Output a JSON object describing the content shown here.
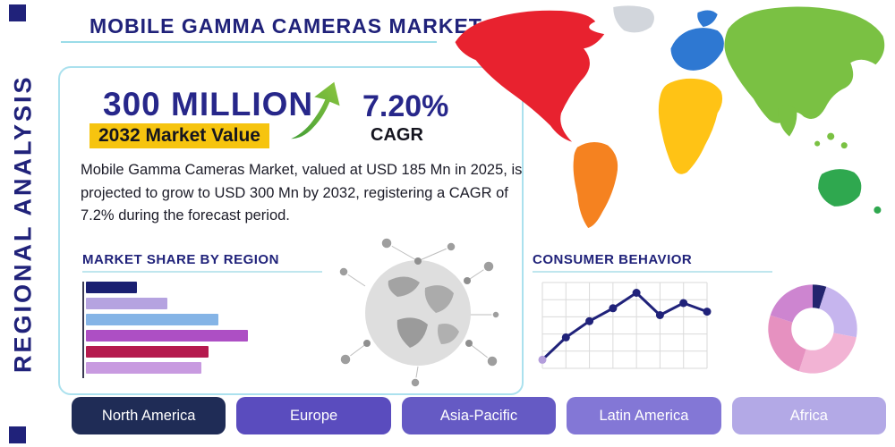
{
  "page": {
    "title": "MOBILE GAMMA CAMERAS MARKET",
    "side_label": "REGIONAL ANALYSIS"
  },
  "highlight": {
    "value": "300 MILLION",
    "value_caption": "2032 Market Value",
    "cagr_value": "7.20%",
    "cagr_label": "CAGR",
    "description": "Mobile Gamma Cameras Market, valued at USD 185 Mn in 2025, is projected to grow to USD 300 Mn by 2032, registering a CAGR of 7.2% during the forecast period.",
    "highlight_color": "#f6c40f",
    "accent_navy": "#20227a",
    "accent_teal": "#abe1ee",
    "arrow_icon": "growth-arrow-up-icon"
  },
  "sections": {
    "market_share_heading": "MARKET SHARE BY REGION",
    "consumer_behavior_heading": "CONSUMER BEHAVIOR"
  },
  "region_buttons": [
    {
      "label": "North America",
      "color": "#1f2c56"
    },
    {
      "label": "Europe",
      "color": "#5a4cbe"
    },
    {
      "label": "Asia-Pacific",
      "color": "#655ac4"
    },
    {
      "label": "Latin America",
      "color": "#8377d6"
    },
    {
      "label": "Africa",
      "color": "#b3a9e6"
    }
  ],
  "map": {
    "name": "world-map",
    "region_colors": {
      "north_america": "#e8222f",
      "greenland": "#d2d6dc",
      "south_america": "#f58220",
      "europe": "#2e78d2",
      "africa": "#ffc315",
      "asia": "#7ac143",
      "australia": "#2fa84f"
    }
  },
  "chart_data": [
    {
      "type": "bar",
      "title": "MARKET SHARE BY REGION",
      "orientation": "horizontal",
      "categories": [
        "",
        "",
        "",
        "",
        "",
        ""
      ],
      "values": [
        30,
        48,
        78,
        95,
        72,
        68
      ],
      "colors": [
        "#1a1f71",
        "#b5a3e0",
        "#85b4e6",
        "#ad4fc4",
        "#b51a4e",
        "#c89ae0"
      ],
      "xlabel": "",
      "ylabel": "",
      "note_axis": "unlabeled bars, relative share 0-100"
    },
    {
      "type": "line",
      "title": "CONSUMER BEHAVIOR",
      "x": [
        1,
        2,
        3,
        4,
        5,
        6,
        7,
        8
      ],
      "values": [
        10,
        36,
        55,
        70,
        88,
        62,
        76,
        66
      ],
      "ylim": [
        0,
        100
      ],
      "grid": true,
      "line_color": "#20227a",
      "first_point_color": "#b39ddb"
    },
    {
      "type": "pie",
      "donut": true,
      "title": "Regional share donut",
      "slices": [
        {
          "value": 5,
          "color": "#23246e"
        },
        {
          "value": 23,
          "color": "#c6b5ee"
        },
        {
          "value": 27,
          "color": "#f2b3d4"
        },
        {
          "value": 25,
          "color": "#e691c0"
        },
        {
          "value": 20,
          "color": "#cd85d0"
        }
      ]
    }
  ]
}
